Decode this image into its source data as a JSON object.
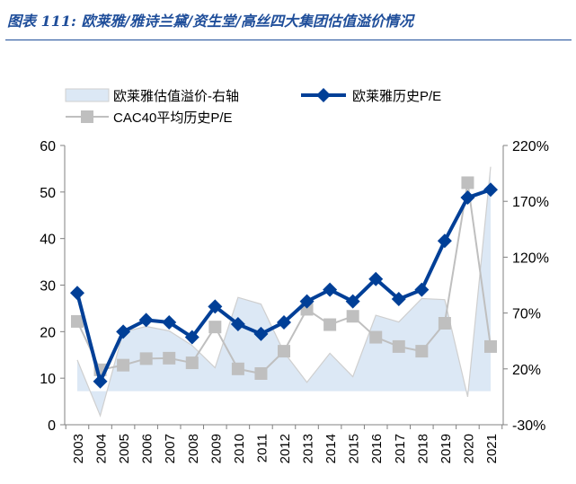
{
  "title": "图表 111: 欧莱雅/雅诗兰黛/资生堂/高丝四大集团估值溢价情况",
  "chart_data": {
    "type": "line",
    "categories": [
      "2003",
      "2004",
      "2005",
      "2006",
      "2007",
      "2008",
      "2009",
      "2010",
      "2011",
      "2012",
      "2013",
      "2014",
      "2015",
      "2016",
      "2017",
      "2018",
      "2019",
      "2020",
      "2021"
    ],
    "y_left": {
      "range": [
        0,
        60
      ],
      "ticks": [
        0,
        10,
        20,
        30,
        40,
        50,
        60
      ]
    },
    "y_right": {
      "range": [
        -30,
        220
      ],
      "ticks": [
        "-30%",
        "20%",
        "70%",
        "120%",
        "170%",
        "220%"
      ],
      "unit": "%"
    },
    "series": [
      {
        "name": "欧莱雅估值溢价-右轴",
        "type": "area",
        "axis": "right",
        "color": "#dce8f5",
        "values": [
          28,
          -22,
          53,
          58,
          54,
          41,
          21,
          84,
          78,
          35,
          8,
          34,
          13,
          68,
          62,
          83,
          82,
          -5,
          201
        ]
      },
      {
        "name": "欧莱雅历史P/E",
        "type": "line",
        "axis": "left",
        "color": "#003f97",
        "marker": "diamond",
        "values": [
          28.3,
          9.3,
          20,
          22.5,
          22,
          18.8,
          25.4,
          21.6,
          19.5,
          22,
          26.5,
          29,
          26.5,
          31.3,
          27,
          29,
          39.5,
          48.8,
          50.5
        ]
      },
      {
        "name": "CAC40平均历史P/E",
        "type": "line",
        "axis": "left",
        "color": "#bfbfbf",
        "marker": "square",
        "values": [
          22.2,
          11.8,
          12.8,
          14.2,
          14.3,
          13.3,
          21,
          12,
          11,
          15.8,
          24.8,
          21.5,
          23.3,
          18.8,
          16.8,
          15.8,
          21.8,
          52,
          16.8
        ]
      }
    ],
    "legend": "top",
    "grid": false
  }
}
